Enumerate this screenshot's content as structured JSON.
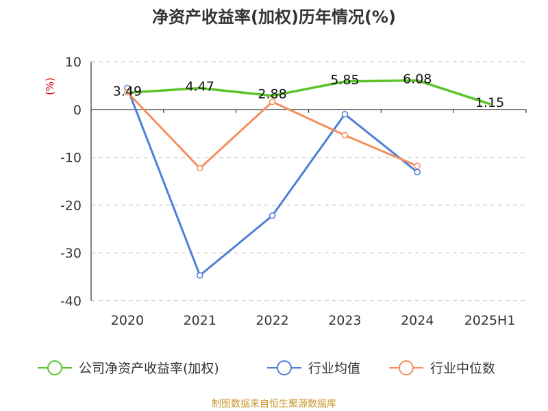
{
  "chart_data": {
    "type": "line",
    "title": "净资产收益率(加权)历年情况(%)",
    "ylabel": "(%)",
    "xlabel": "",
    "categories": [
      "2020",
      "2021",
      "2022",
      "2023",
      "2024",
      "2025H1"
    ],
    "ylim": [
      -40,
      10
    ],
    "yticks": [
      10,
      0,
      -10,
      -20,
      -30,
      -40
    ],
    "grid": true,
    "legend_position": "bottom",
    "series": [
      {
        "name": "公司净资产收益率(加权)",
        "color": "#5cc32a",
        "marker": "none",
        "values": [
          3.49,
          4.47,
          2.88,
          5.85,
          6.08,
          1.15
        ],
        "labels": [
          "3.49",
          "4.47",
          "2.88",
          "5.85",
          "6.08",
          "1.15"
        ]
      },
      {
        "name": "行业均值",
        "color": "#4e7fd6",
        "marker": "circle",
        "values": [
          4.5,
          -34.7,
          -22.2,
          -1.0,
          -13.1,
          null
        ]
      },
      {
        "name": "行业中位数",
        "color": "#f58f5c",
        "marker": "circle",
        "values": [
          3.6,
          -12.3,
          1.6,
          -5.4,
          -11.8,
          null
        ]
      }
    ],
    "source": "制图数据来自恒生聚源数据库"
  }
}
